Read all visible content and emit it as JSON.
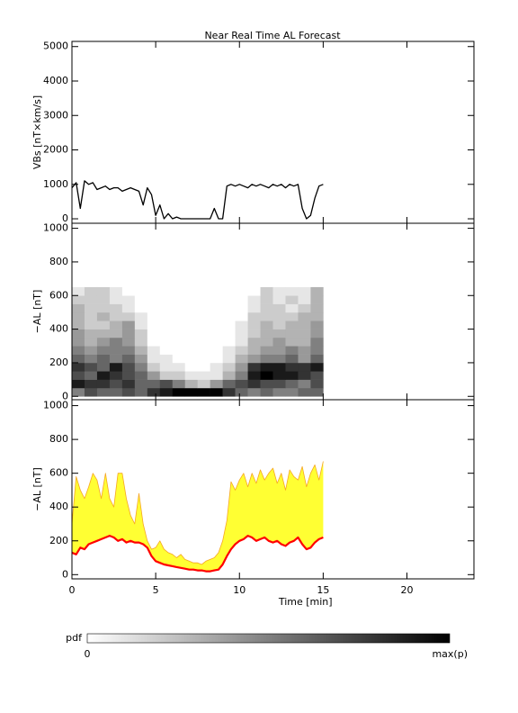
{
  "chart_data": [
    {
      "type": "line",
      "title": "Near Real Time AL Forecast",
      "y_label": "VBs [nT×km/s]",
      "xlim": [
        0,
        24
      ],
      "xticks": [
        0,
        5,
        10,
        15,
        20
      ],
      "ylim": [
        -130,
        5150
      ],
      "yticks": [
        0,
        1000,
        2000,
        3000,
        4000,
        5000
      ],
      "x": [
        0,
        0.25,
        0.5,
        0.75,
        1,
        1.25,
        1.5,
        1.75,
        2,
        2.25,
        2.5,
        2.75,
        3,
        3.25,
        3.5,
        3.75,
        4,
        4.25,
        4.5,
        4.75,
        5,
        5.25,
        5.5,
        5.75,
        6,
        6.25,
        6.5,
        6.75,
        7,
        7.25,
        7.5,
        7.75,
        8,
        8.25,
        8.5,
        8.75,
        9,
        9.25,
        9.5,
        9.75,
        10,
        10.25,
        10.5,
        10.75,
        11,
        11.25,
        11.5,
        11.75,
        12,
        12.25,
        12.5,
        12.75,
        13,
        13.25,
        13.5,
        13.75,
        14,
        14.25,
        14.5,
        14.75,
        15
      ],
      "series": [
        {
          "color": "#000000",
          "values": [
            900,
            1050,
            300,
            1100,
            1000,
            1050,
            850,
            900,
            950,
            850,
            900,
            900,
            800,
            850,
            900,
            850,
            800,
            400,
            900,
            700,
            100,
            400,
            0,
            150,
            0,
            50,
            0,
            0,
            0,
            0,
            0,
            0,
            0,
            0,
            300,
            0,
            0,
            950,
            1000,
            950,
            1000,
            950,
            900,
            1000,
            950,
            1000,
            950,
            900,
            1000,
            950,
            1000,
            900,
            1000,
            950,
            1000,
            300,
            0,
            100,
            600,
            950,
            1000
          ]
        }
      ]
    },
    {
      "type": "heatmap",
      "y_label": "−AL [nT]",
      "xlim": [
        0,
        24
      ],
      "xticks": [
        0,
        5,
        10,
        15,
        20
      ],
      "ylim": [
        -20,
        1030
      ],
      "yticks": [
        0,
        200,
        400,
        600,
        800,
        1000
      ],
      "x_bins": [
        0,
        0.75,
        1.5,
        2.25,
        3,
        3.75,
        4.5,
        5.25,
        6,
        6.75,
        7.5,
        8.25,
        9,
        9.75,
        10.5,
        11.25,
        12,
        12.75,
        13.5,
        14.25,
        15
      ],
      "y_bins": [
        0,
        50,
        100,
        150,
        200,
        250,
        300,
        350,
        400,
        450,
        500,
        550,
        600,
        650
      ],
      "z": [
        [
          0.5,
          0.7,
          0.6,
          0.6,
          0.7,
          0.6,
          0.8,
          0.9,
          1,
          1,
          1,
          1,
          0.8,
          0.6,
          0.5,
          0.6,
          0.5,
          0.5,
          0.6,
          0.6
        ],
        [
          0.9,
          0.8,
          0.8,
          0.7,
          0.8,
          0.6,
          0.6,
          0.7,
          0.5,
          0.3,
          0.2,
          0.4,
          0.6,
          0.7,
          0.8,
          0.7,
          0.7,
          0.6,
          0.5,
          0.7
        ],
        [
          0.7,
          0.6,
          0.9,
          0.8,
          0.7,
          0.6,
          0.4,
          0.2,
          0.2,
          0.1,
          0.1,
          0.1,
          0.3,
          0.5,
          0.9,
          1,
          0.9,
          0.9,
          0.8,
          0.7
        ],
        [
          0.8,
          0.7,
          0.6,
          0.9,
          0.7,
          0.5,
          0.2,
          0.1,
          0.1,
          0,
          0,
          0.1,
          0.2,
          0.4,
          0.8,
          0.9,
          0.9,
          0.8,
          0.8,
          0.9
        ],
        [
          0.6,
          0.5,
          0.6,
          0.5,
          0.6,
          0.4,
          0.1,
          0.1,
          0,
          0,
          0,
          0,
          0.1,
          0.3,
          0.4,
          0.5,
          0.5,
          0.6,
          0.4,
          0.6
        ],
        [
          0.5,
          0.4,
          0.5,
          0.5,
          0.5,
          0.3,
          0.1,
          0,
          0,
          0,
          0,
          0,
          0.1,
          0.2,
          0.3,
          0.4,
          0.4,
          0.5,
          0.4,
          0.5
        ],
        [
          0.4,
          0.3,
          0.4,
          0.5,
          0.4,
          0.2,
          0,
          0,
          0,
          0,
          0,
          0,
          0,
          0.1,
          0.3,
          0.3,
          0.4,
          0.3,
          0.3,
          0.5
        ],
        [
          0.4,
          0.3,
          0.3,
          0.3,
          0.4,
          0.2,
          0,
          0,
          0,
          0,
          0,
          0,
          0,
          0.1,
          0.2,
          0.3,
          0.3,
          0.3,
          0.3,
          0.4
        ],
        [
          0.3,
          0.2,
          0.2,
          0.3,
          0.4,
          0.1,
          0,
          0,
          0,
          0,
          0,
          0,
          0,
          0.1,
          0.2,
          0.3,
          0.2,
          0.3,
          0.3,
          0.4
        ],
        [
          0.3,
          0.2,
          0.3,
          0.2,
          0.2,
          0.1,
          0,
          0,
          0,
          0,
          0,
          0,
          0,
          0,
          0.2,
          0.2,
          0.2,
          0.2,
          0.3,
          0.3
        ],
        [
          0.3,
          0.2,
          0.2,
          0.2,
          0.1,
          0,
          0,
          0,
          0,
          0,
          0,
          0,
          0,
          0,
          0.1,
          0.2,
          0.2,
          0.1,
          0.2,
          0.3
        ],
        [
          0.2,
          0.2,
          0.2,
          0.1,
          0.1,
          0,
          0,
          0,
          0,
          0,
          0,
          0,
          0,
          0,
          0.1,
          0.2,
          0.1,
          0.2,
          0.1,
          0.3
        ],
        [
          0.1,
          0.2,
          0.2,
          0.1,
          0,
          0,
          0,
          0,
          0,
          0,
          0,
          0,
          0,
          0,
          0,
          0.2,
          0.1,
          0.1,
          0.1,
          0.3
        ]
      ]
    },
    {
      "type": "band",
      "y_label": "−AL [nT]",
      "x_label": "Time [min]",
      "fill": "#ffff33",
      "xlim": [
        0,
        24
      ],
      "xticks": [
        0,
        5,
        10,
        15,
        20
      ],
      "ylim": [
        -25,
        1035
      ],
      "yticks": [
        0,
        200,
        400,
        600,
        800,
        1000
      ],
      "x": [
        0,
        0.25,
        0.5,
        0.75,
        1,
        1.25,
        1.5,
        1.75,
        2,
        2.25,
        2.5,
        2.75,
        3,
        3.25,
        3.5,
        3.75,
        4,
        4.25,
        4.5,
        4.75,
        5,
        5.25,
        5.5,
        5.75,
        6,
        6.25,
        6.5,
        6.75,
        7,
        7.25,
        7.5,
        7.75,
        8,
        8.25,
        8.5,
        8.75,
        9,
        9.25,
        9.5,
        9.75,
        10,
        10.25,
        10.5,
        10.75,
        11,
        11.25,
        11.5,
        11.75,
        12,
        12.25,
        12.5,
        12.75,
        13,
        13.25,
        13.5,
        13.75,
        14,
        14.25,
        14.5,
        14.75,
        15
      ],
      "series": [
        {
          "color": "#f5a623",
          "values": [
            300,
            580,
            500,
            450,
            520,
            600,
            560,
            450,
            600,
            450,
            400,
            600,
            600,
            450,
            350,
            300,
            480,
            300,
            200,
            150,
            160,
            200,
            150,
            130,
            120,
            100,
            120,
            90,
            80,
            70,
            70,
            60,
            80,
            90,
            100,
            130,
            200,
            320,
            550,
            500,
            560,
            600,
            520,
            600,
            540,
            620,
            560,
            600,
            630,
            540,
            600,
            500,
            620,
            580,
            560,
            640,
            520,
            600,
            650,
            560,
            670
          ]
        },
        {
          "color": "#ff0000",
          "values": [
            130,
            120,
            160,
            150,
            180,
            190,
            200,
            210,
            220,
            230,
            220,
            200,
            210,
            190,
            200,
            190,
            190,
            180,
            160,
            110,
            80,
            70,
            60,
            55,
            50,
            45,
            40,
            35,
            30,
            30,
            25,
            25,
            20,
            20,
            25,
            30,
            60,
            110,
            150,
            180,
            200,
            210,
            230,
            220,
            200,
            210,
            220,
            200,
            190,
            200,
            180,
            170,
            190,
            200,
            220,
            180,
            150,
            160,
            190,
            210,
            220
          ]
        }
      ]
    }
  ],
  "colorbar": {
    "label": "pdf",
    "min_label": "0",
    "max_label": "max(p)",
    "colors": [
      "#ffffff",
      "#000000"
    ]
  }
}
